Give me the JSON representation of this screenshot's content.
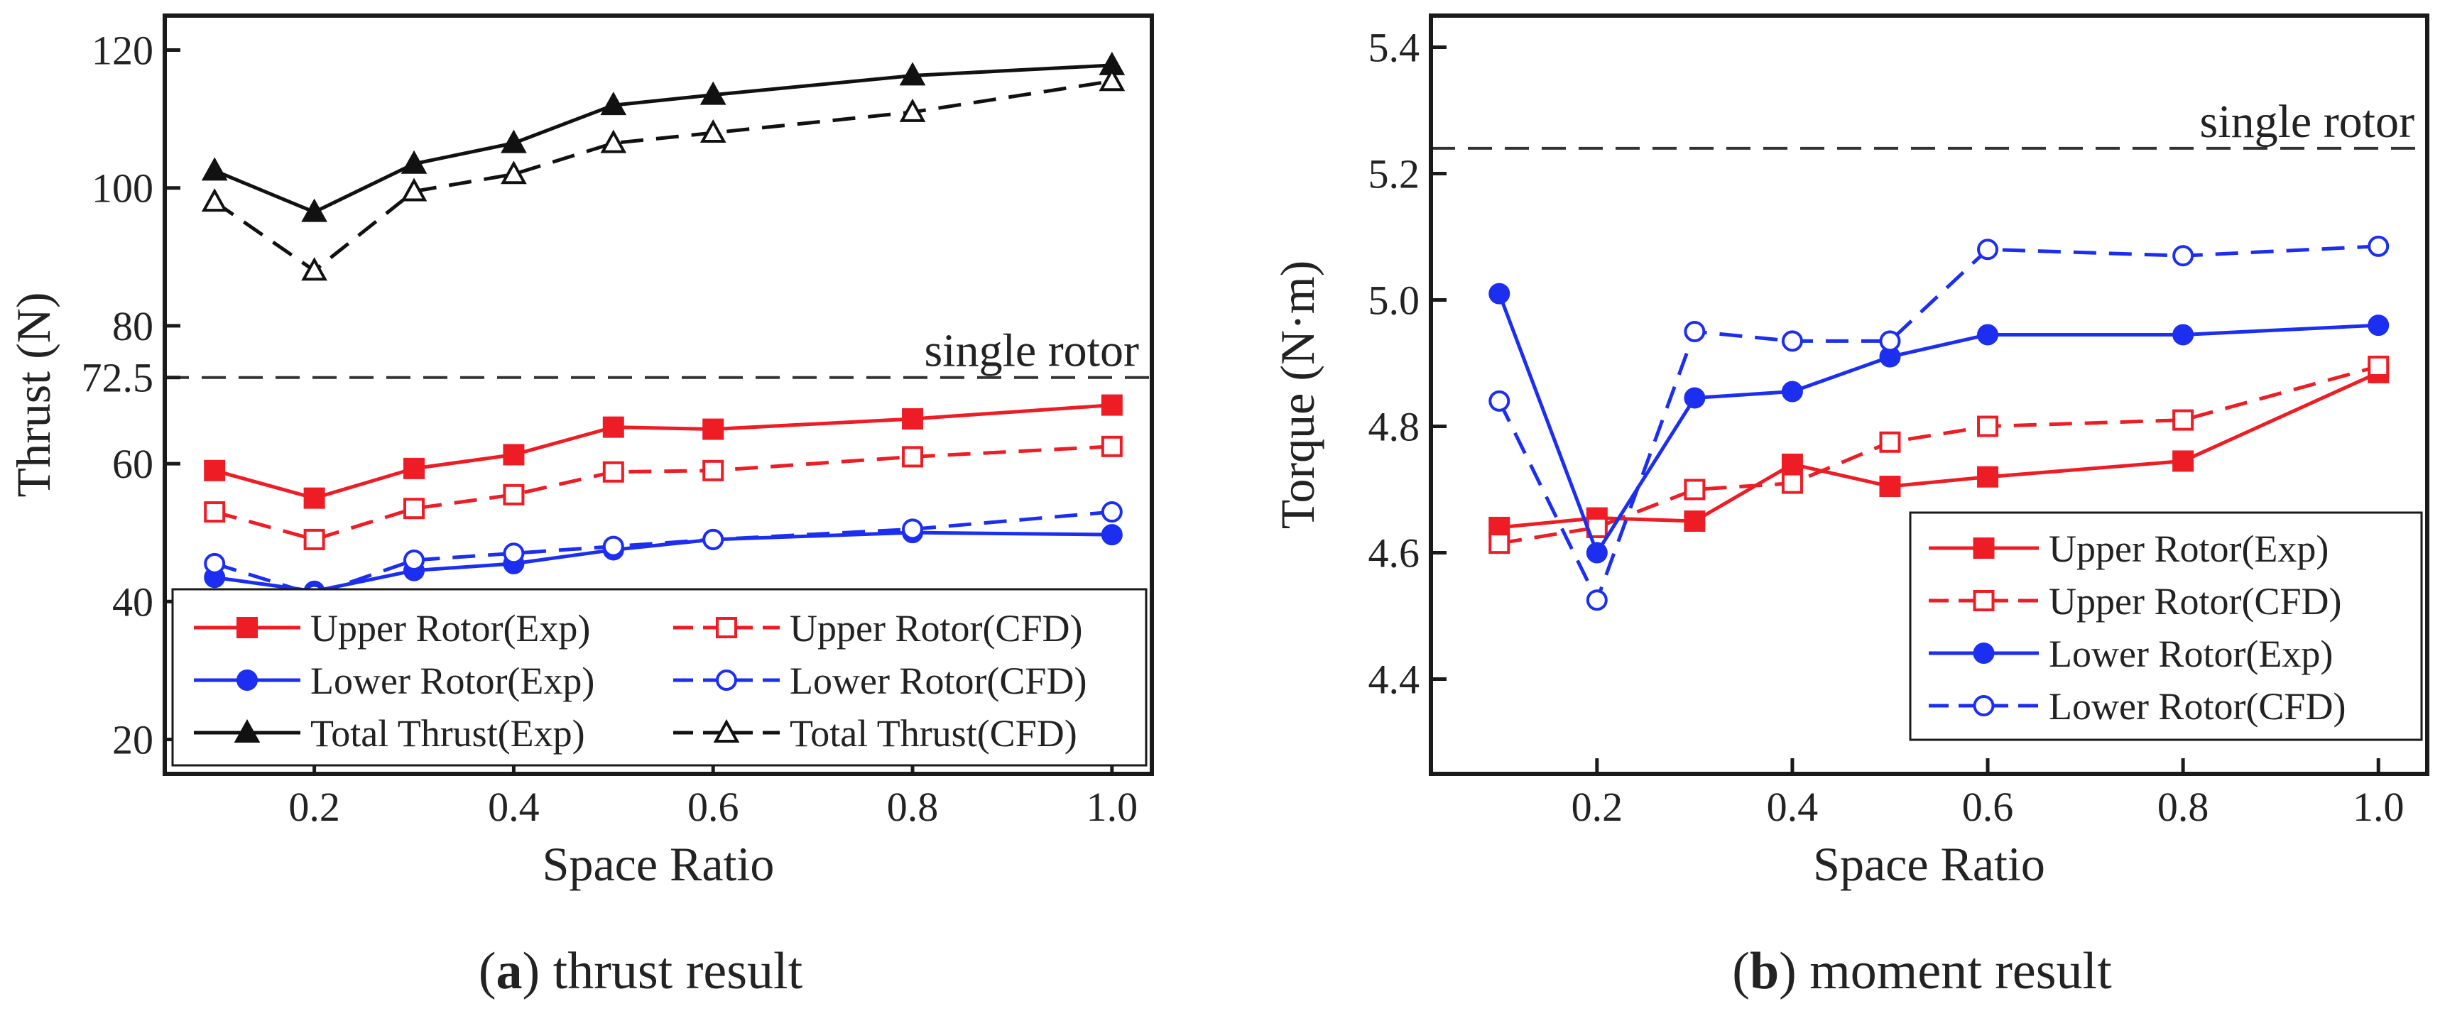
{
  "chart_data": [
    {
      "type": "line",
      "caption_letter": "a",
      "caption_rest": ") thrust result",
      "xlabel": "Space Ratio",
      "ylabel": "Thrust (N)",
      "xlim": [
        0.05,
        1.04
      ],
      "ylim": [
        15,
        125
      ],
      "xticks": [
        0.2,
        0.4,
        0.6,
        0.8,
        1.0
      ],
      "xtick_labels": [
        "0.2",
        "0.4",
        "0.6",
        "0.8",
        "1.0"
      ],
      "yticks": [
        20,
        40,
        60,
        72.5,
        80,
        100,
        120
      ],
      "ytick_labels": [
        "20",
        "40",
        "60",
        "72.5",
        "80",
        "100",
        "120"
      ],
      "reference_line": {
        "y": 72.5,
        "label": "single rotor"
      },
      "legend_position": "bottom",
      "x": [
        0.1,
        0.2,
        0.3,
        0.4,
        0.5,
        0.6,
        0.8,
        1.0
      ],
      "series": [
        {
          "name": "Upper Rotor(Exp)",
          "color": "#ee1c24",
          "dash": "solid",
          "marker": "square-filled",
          "values": [
            59.0,
            55.0,
            59.3,
            61.3,
            65.3,
            65.0,
            66.5,
            68.5
          ]
        },
        {
          "name": "Lower Rotor(Exp)",
          "color": "#1c2ef0",
          "dash": "solid",
          "marker": "circle-filled",
          "values": [
            43.5,
            41.5,
            44.5,
            45.5,
            47.5,
            49.0,
            50.0,
            49.7
          ]
        },
        {
          "name": "Total Thrust(Exp)",
          "color": "#111111",
          "dash": "solid",
          "marker": "triangle-filled",
          "values": [
            102.5,
            96.5,
            103.5,
            106.5,
            112.0,
            113.5,
            116.3,
            117.8
          ]
        },
        {
          "name": "Upper Rotor(CFD)",
          "color": "#ee1c24",
          "dash": "dashed",
          "marker": "square-open",
          "values": [
            53.0,
            49.0,
            53.5,
            55.5,
            58.8,
            59.0,
            61.0,
            62.5
          ]
        },
        {
          "name": "Lower Rotor(CFD)",
          "color": "#1c2ef0",
          "dash": "dashed",
          "marker": "circle-open",
          "values": [
            45.5,
            41.0,
            46.0,
            47.0,
            48.0,
            49.0,
            50.5,
            53.0
          ]
        },
        {
          "name": "Total Thrust(CFD)",
          "color": "#111111",
          "dash": "dashed",
          "marker": "triangle-open",
          "values": [
            98.0,
            88.0,
            99.5,
            102.0,
            106.5,
            108.0,
            111.0,
            115.5
          ]
        }
      ]
    },
    {
      "type": "line",
      "caption_letter": "b",
      "caption_rest": ") moment result",
      "xlabel": "Space Ratio",
      "ylabel": "Torque (N·m)",
      "xlim": [
        0.03,
        1.05
      ],
      "ylim": [
        4.25,
        5.45
      ],
      "xticks": [
        0.2,
        0.4,
        0.6,
        0.8,
        1.0
      ],
      "xtick_labels": [
        "0.2",
        "0.4",
        "0.6",
        "0.8",
        "1.0"
      ],
      "yticks": [
        4.4,
        4.6,
        4.8,
        5.0,
        5.2,
        5.4
      ],
      "ytick_labels": [
        "4.4",
        "4.6",
        "4.8",
        "5.0",
        "5.2",
        "5.4"
      ],
      "reference_line": {
        "y": 5.24,
        "label": "single rotor"
      },
      "legend_position": "bottom-right",
      "x": [
        0.1,
        0.2,
        0.3,
        0.4,
        0.5,
        0.6,
        0.8,
        1.0
      ],
      "series": [
        {
          "name": "Upper Rotor(Exp)",
          "color": "#ee1c24",
          "dash": "solid",
          "marker": "square-filled",
          "values": [
            4.64,
            4.655,
            4.65,
            4.74,
            4.705,
            4.72,
            4.745,
            4.885
          ]
        },
        {
          "name": "Upper Rotor(CFD)",
          "color": "#ee1c24",
          "dash": "dashed",
          "marker": "square-open",
          "values": [
            4.615,
            4.64,
            4.7,
            4.71,
            4.775,
            4.8,
            4.81,
            4.895
          ]
        },
        {
          "name": "Lower Rotor(Exp)",
          "color": "#1c2ef0",
          "dash": "solid",
          "marker": "circle-filled",
          "values": [
            5.01,
            4.6,
            4.845,
            4.855,
            4.91,
            4.945,
            4.945,
            4.96
          ]
        },
        {
          "name": "Lower Rotor(CFD)",
          "color": "#1c2ef0",
          "dash": "dashed",
          "marker": "circle-open",
          "values": [
            4.84,
            4.525,
            4.95,
            4.935,
            4.935,
            5.08,
            5.07,
            5.085
          ]
        }
      ]
    }
  ]
}
